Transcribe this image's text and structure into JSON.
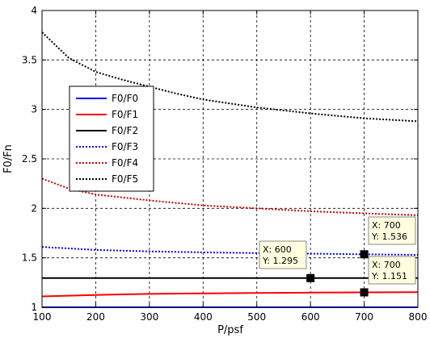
{
  "chart_data": {
    "type": "line",
    "title": "",
    "xlabel": "P/psf",
    "ylabel": "F0/Fn",
    "xlim": [
      100,
      800
    ],
    "ylim": [
      1,
      4
    ],
    "xticks": [
      100,
      200,
      300,
      400,
      500,
      600,
      700,
      800
    ],
    "yticks": [
      1,
      1.5,
      2,
      2.5,
      3,
      3.5,
      4
    ],
    "ytick_labels": [
      "1",
      "1.5",
      "2",
      "2.5",
      "3",
      "3.5",
      "4"
    ],
    "grid": true,
    "legend_position": "left",
    "series": [
      {
        "name": "F0/F0",
        "color": "#0000ff",
        "style": "solid",
        "x": [
          100,
          800
        ],
        "y": [
          1,
          1
        ]
      },
      {
        "name": "F0/F1",
        "color": "#ff0000",
        "style": "solid",
        "x": [
          100,
          200,
          300,
          400,
          500,
          600,
          700,
          800
        ],
        "y": [
          1.11,
          1.125,
          1.135,
          1.14,
          1.145,
          1.148,
          1.151,
          1.153
        ]
      },
      {
        "name": "F0/F2",
        "color": "#000000",
        "style": "solid",
        "x": [
          100,
          800
        ],
        "y": [
          1.295,
          1.295
        ]
      },
      {
        "name": "F0/F3",
        "color": "#0000ff",
        "style": "dotted",
        "x": [
          100,
          150,
          200,
          300,
          400,
          500,
          600,
          700,
          800
        ],
        "y": [
          1.61,
          1.595,
          1.58,
          1.565,
          1.555,
          1.548,
          1.542,
          1.536,
          1.53
        ]
      },
      {
        "name": "F0/F4",
        "color": "#cc0000",
        "style": "dotted",
        "x": [
          100,
          150,
          200,
          250,
          300,
          400,
          500,
          600,
          700,
          800
        ],
        "y": [
          2.3,
          2.2,
          2.14,
          2.11,
          2.08,
          2.03,
          2.0,
          1.97,
          1.95,
          1.93
        ]
      },
      {
        "name": "F0/F5",
        "color": "#000000",
        "style": "dotted",
        "x": [
          100,
          150,
          200,
          250,
          300,
          350,
          400,
          500,
          600,
          700,
          800
        ],
        "y": [
          3.78,
          3.52,
          3.38,
          3.3,
          3.23,
          3.16,
          3.1,
          3.02,
          2.96,
          2.91,
          2.88
        ]
      }
    ],
    "datatips": [
      {
        "x": 600,
        "y": 1.295,
        "x_text": "X: 600",
        "y_text": "Y: 1.295"
      },
      {
        "x": 700,
        "y": 1.536,
        "x_text": "X: 700",
        "y_text": "Y: 1.536"
      },
      {
        "x": 700,
        "y": 1.151,
        "x_text": "X: 700",
        "y_text": "Y: 1.151"
      }
    ]
  }
}
